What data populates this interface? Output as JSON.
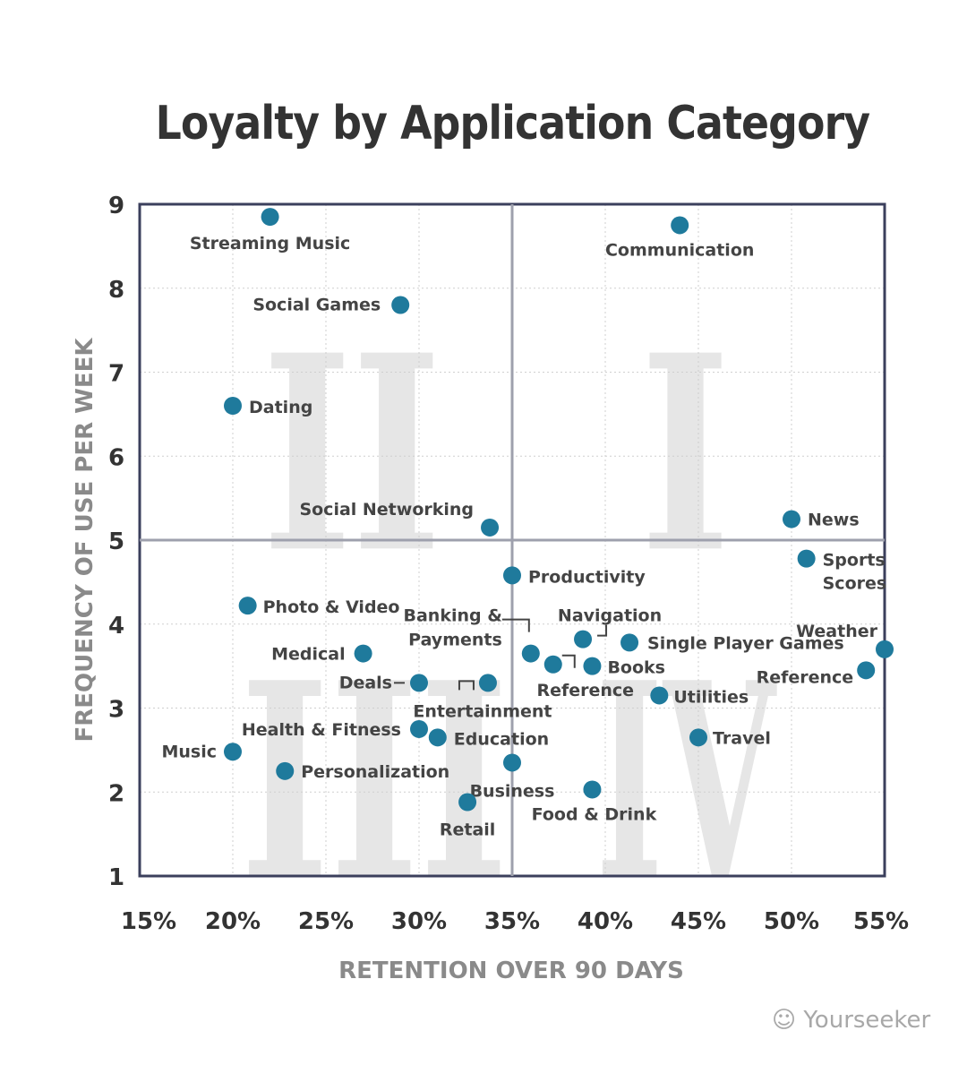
{
  "chart_data": {
    "type": "scatter",
    "title": "Loyalty by Application Category",
    "xlabel": "RETENTION OVER 90 DAYS",
    "ylabel": "FREQUENCY OF USE PER WEEK",
    "xlim": [
      15,
      55
    ],
    "ylim": [
      1,
      9
    ],
    "x_ticks": [
      "15%",
      "20%",
      "25%",
      "30%",
      "35%",
      "40%",
      "45%",
      "50%",
      "55%"
    ],
    "y_ticks": [
      "1",
      "2",
      "3",
      "4",
      "5",
      "6",
      "7",
      "8",
      "9"
    ],
    "grid": true,
    "x_divider": 35,
    "y_divider": 5,
    "quadrant_labels": [
      "I",
      "II",
      "III",
      "IV"
    ],
    "point_color": "#1f7a9c",
    "points": [
      {
        "label": "Streaming Music",
        "x": 22.0,
        "y": 8.85
      },
      {
        "label": "Communication",
        "x": 44.0,
        "y": 8.75
      },
      {
        "label": "Social Games",
        "x": 29.0,
        "y": 7.8
      },
      {
        "label": "Dating",
        "x": 20.0,
        "y": 6.6
      },
      {
        "label": "Social Networking",
        "x": 33.8,
        "y": 5.15
      },
      {
        "label": "News",
        "x": 50.0,
        "y": 5.25
      },
      {
        "label": "Sports Scores",
        "x": 50.8,
        "y": 4.78
      },
      {
        "label": "Productivity",
        "x": 35.0,
        "y": 4.58
      },
      {
        "label": "Photo & Video",
        "x": 20.8,
        "y": 4.22
      },
      {
        "label": "Navigation",
        "x": 38.8,
        "y": 3.82
      },
      {
        "label": "Single Player Games",
        "x": 41.3,
        "y": 3.78
      },
      {
        "label": "Weather",
        "x": 55.0,
        "y": 3.7
      },
      {
        "label": "Medical",
        "x": 27.0,
        "y": 3.65
      },
      {
        "label": "Banking & Payments",
        "x": 36.0,
        "y": 3.65
      },
      {
        "label": "Reference",
        "x": 37.2,
        "y": 3.52
      },
      {
        "label": "Books",
        "x": 39.3,
        "y": 3.5
      },
      {
        "label": "Reference",
        "x": 54.0,
        "y": 3.45
      },
      {
        "label": "Deals",
        "x": 30.0,
        "y": 3.3
      },
      {
        "label": "Entertainment",
        "x": 33.7,
        "y": 3.3
      },
      {
        "label": "Utilities",
        "x": 42.9,
        "y": 3.15
      },
      {
        "label": "Health & Fitness",
        "x": 30.0,
        "y": 2.75
      },
      {
        "label": "Education",
        "x": 31.0,
        "y": 2.65
      },
      {
        "label": "Travel",
        "x": 45.0,
        "y": 2.65
      },
      {
        "label": "Music",
        "x": 20.0,
        "y": 2.48
      },
      {
        "label": "Business",
        "x": 35.0,
        "y": 2.35
      },
      {
        "label": "Personalization",
        "x": 22.8,
        "y": 2.25
      },
      {
        "label": "Food & Drink",
        "x": 39.3,
        "y": 2.03
      },
      {
        "label": "Retail",
        "x": 32.6,
        "y": 1.88
      }
    ]
  },
  "watermark": "Yourseeker"
}
